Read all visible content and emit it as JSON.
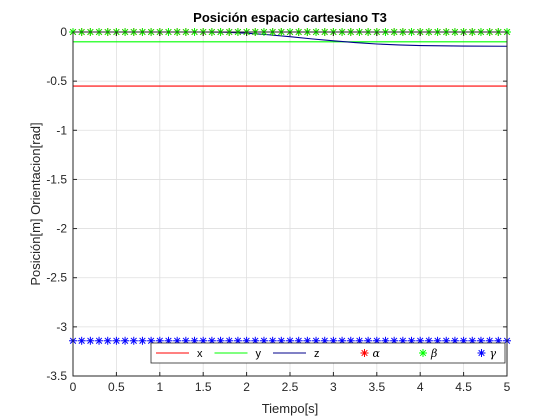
{
  "chart_data": {
    "type": "line",
    "title": "Posición espacio cartesiano T3",
    "xlabel": "Tiempo[s]",
    "ylabel": "Posición[m] Orientacion[rad]",
    "xlim": [
      0,
      5
    ],
    "ylim": [
      -3.5,
      0
    ],
    "xticks": [
      0,
      0.5,
      1,
      1.5,
      2,
      2.5,
      3,
      3.5,
      4,
      4.5,
      5
    ],
    "xtick_labels": [
      "0",
      "0.5",
      "1",
      "1.5",
      "2",
      "2.5",
      "3",
      "3.5",
      "4",
      "4.5",
      "5"
    ],
    "yticks": [
      0,
      -0.5,
      -1,
      -1.5,
      -2,
      -2.5,
      -3,
      -3.5
    ],
    "ytick_labels": [
      "0",
      "-0.5",
      "-1",
      "-1.5",
      "-2",
      "-2.5",
      "-3",
      "-3.5"
    ],
    "grid": true,
    "legend_position": "bottom",
    "series": [
      {
        "name": "x",
        "style": "line",
        "color": "#ff0000",
        "x": [
          0,
          5
        ],
        "y": [
          -0.55,
          -0.55
        ]
      },
      {
        "name": "y",
        "style": "line",
        "color": "#00ff00",
        "x": [
          0,
          5
        ],
        "y": [
          -0.1,
          -0.1
        ]
      },
      {
        "name": "z",
        "style": "line",
        "color": "#00008b",
        "x": [
          0,
          0.5,
          1,
          1.5,
          1.75,
          2,
          2.25,
          2.5,
          2.75,
          3,
          3.25,
          3.5,
          3.75,
          4,
          4.5,
          5
        ],
        "y": [
          0,
          0,
          0,
          0,
          -0.002,
          -0.012,
          -0.028,
          -0.048,
          -0.07,
          -0.09,
          -0.108,
          -0.122,
          -0.132,
          -0.138,
          -0.143,
          -0.145
        ]
      },
      {
        "name": "α",
        "style": "marker",
        "color": "#ff0000",
        "x": [
          0,
          0.1,
          0.2,
          0.3,
          0.4,
          0.5,
          0.6,
          0.7,
          0.8,
          0.9,
          1,
          1.1,
          1.2,
          1.3,
          1.4,
          1.5,
          1.6,
          1.7,
          1.8,
          1.9,
          2,
          2.1,
          2.2,
          2.3,
          2.4,
          2.5,
          2.6,
          2.7,
          2.8,
          2.9,
          3,
          3.1,
          3.2,
          3.3,
          3.4,
          3.5,
          3.6,
          3.7,
          3.8,
          3.9,
          4,
          4.1,
          4.2,
          4.3,
          4.4,
          4.5,
          4.6,
          4.7,
          4.8,
          4.9,
          5
        ],
        "y": [
          0,
          0,
          0,
          0,
          0,
          0,
          0,
          0,
          0,
          0,
          0,
          0,
          0,
          0,
          0,
          0,
          0,
          0,
          0,
          0,
          0,
          0,
          0,
          0,
          0,
          0,
          0,
          0,
          0,
          0,
          0,
          0,
          0,
          0,
          0,
          0,
          0,
          0,
          0,
          0,
          0,
          0,
          0,
          0,
          0,
          0,
          0,
          0,
          0,
          0,
          0
        ]
      },
      {
        "name": "β",
        "style": "marker",
        "color": "#00ff00",
        "x": [
          0,
          0.1,
          0.2,
          0.3,
          0.4,
          0.5,
          0.6,
          0.7,
          0.8,
          0.9,
          1,
          1.1,
          1.2,
          1.3,
          1.4,
          1.5,
          1.6,
          1.7,
          1.8,
          1.9,
          2,
          2.1,
          2.2,
          2.3,
          2.4,
          2.5,
          2.6,
          2.7,
          2.8,
          2.9,
          3,
          3.1,
          3.2,
          3.3,
          3.4,
          3.5,
          3.6,
          3.7,
          3.8,
          3.9,
          4,
          4.1,
          4.2,
          4.3,
          4.4,
          4.5,
          4.6,
          4.7,
          4.8,
          4.9,
          5
        ],
        "y": [
          0,
          0,
          0,
          0,
          0,
          0,
          0,
          0,
          0,
          0,
          0,
          0,
          0,
          0,
          0,
          0,
          0,
          0,
          0,
          0,
          0,
          0,
          0,
          0,
          0,
          0,
          0,
          0,
          0,
          0,
          0,
          0,
          0,
          0,
          0,
          0,
          0,
          0,
          0,
          0,
          0,
          0,
          0,
          0,
          0,
          0,
          0,
          0,
          0,
          0,
          0
        ]
      },
      {
        "name": "γ",
        "style": "marker",
        "color": "#0000ff",
        "x": [
          0,
          0.1,
          0.2,
          0.3,
          0.4,
          0.5,
          0.6,
          0.7,
          0.8,
          0.9,
          1,
          1.1,
          1.2,
          1.3,
          1.4,
          1.5,
          1.6,
          1.7,
          1.8,
          1.9,
          2,
          2.1,
          2.2,
          2.3,
          2.4,
          2.5,
          2.6,
          2.7,
          2.8,
          2.9,
          3,
          3.1,
          3.2,
          3.3,
          3.4,
          3.5,
          3.6,
          3.7,
          3.8,
          3.9,
          4,
          4.1,
          4.2,
          4.3,
          4.4,
          4.5,
          4.6,
          4.7,
          4.8,
          4.9,
          5
        ],
        "y": [
          -3.1416,
          -3.1416,
          -3.1416,
          -3.1416,
          -3.1416,
          -3.1416,
          -3.1416,
          -3.1416,
          -3.1416,
          -3.1416,
          -3.1416,
          -3.1416,
          -3.1416,
          -3.1416,
          -3.1416,
          -3.1416,
          -3.1416,
          -3.1416,
          -3.1416,
          -3.1416,
          -3.1416,
          -3.1416,
          -3.1416,
          -3.1416,
          -3.1416,
          -3.1416,
          -3.1416,
          -3.1416,
          -3.1416,
          -3.1416,
          -3.1416,
          -3.1416,
          -3.1416,
          -3.1416,
          -3.1416,
          -3.1416,
          -3.1416,
          -3.1416,
          -3.1416,
          -3.1416,
          -3.1416,
          -3.1416,
          -3.1416,
          -3.1416,
          -3.1416,
          -3.1416,
          -3.1416,
          -3.1416,
          -3.1416,
          -3.1416,
          -3.1416
        ]
      }
    ]
  }
}
